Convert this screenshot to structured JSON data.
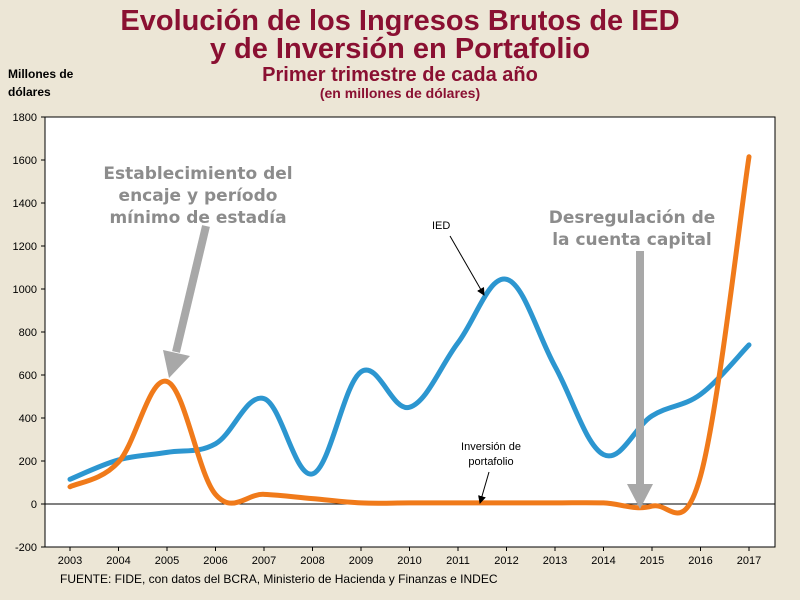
{
  "header": {
    "title_line1": "Evolución de los Ingresos Brutos de IED",
    "title_line2": "y de Inversión en Portafolio",
    "subtitle": "Primer trimestre de cada año",
    "subtitle_units": "(en millones de dólares)",
    "y_units_line1": "Millones de",
    "y_units_line2": "dólares"
  },
  "footer": {
    "source": "FUENTE: FIDE, con datos del BCRA, Ministerio de Hacienda y Finanzas e INDEC"
  },
  "colors": {
    "title": "#8a1032",
    "ied": "#2c96d0",
    "portafolio": "#f07a1a",
    "annotation": "#9b9b9b",
    "background": "#ece6d6",
    "plot_background": "#ffffff"
  },
  "chart_data": {
    "type": "line",
    "title": "Evolución de los Ingresos Brutos de IED y de Inversión en Portafolio",
    "subtitle": "Primer trimestre de cada año",
    "ylabel": "Millones de dólares",
    "xlabel": "",
    "ylim": [
      -200,
      1800
    ],
    "yticks": [
      -200,
      0,
      200,
      400,
      600,
      800,
      1000,
      1200,
      1400,
      1600,
      1800
    ],
    "x": [
      "2003",
      "2004",
      "2005",
      "2006",
      "2007",
      "2008",
      "2009",
      "2010",
      "2011",
      "2012",
      "2013",
      "2014",
      "2015",
      "2016",
      "2017"
    ],
    "grid": false,
    "series": [
      {
        "name": "IED",
        "color": "#2c96d0",
        "values": [
          115,
          205,
          240,
          280,
          490,
          140,
          615,
          450,
          750,
          1045,
          640,
          230,
          410,
          510,
          740
        ]
      },
      {
        "name": "Inversión de portafolio",
        "color": "#f07a1a",
        "values": [
          80,
          195,
          570,
          45,
          45,
          25,
          5,
          5,
          5,
          5,
          5,
          5,
          -10,
          130,
          1615
        ]
      }
    ],
    "annotations": [
      {
        "text_line1": "Establecimiento del",
        "text_line2": "encaje y período",
        "text_line3": "mínimo de estadía",
        "x": "2005",
        "y": 570
      },
      {
        "text_line1": "Desregulación de",
        "text_line2": "la cuenta capital",
        "x": "2015",
        "y": -10
      }
    ],
    "series_labels": {
      "ied": "IED",
      "portafolio_line1": "Inversión de",
      "portafolio_line2": "portafolio"
    }
  }
}
